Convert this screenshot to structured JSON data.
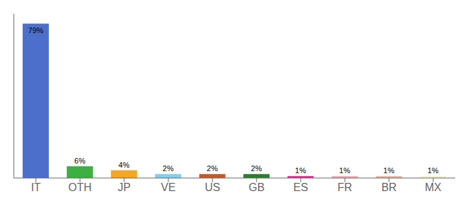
{
  "chart_data": {
    "type": "bar",
    "categories": [
      "IT",
      "OTH",
      "JP",
      "VE",
      "US",
      "GB",
      "ES",
      "FR",
      "BR",
      "MX"
    ],
    "values": [
      79,
      6,
      4,
      2,
      2,
      2,
      1,
      1,
      1,
      1
    ],
    "value_labels": [
      "79%",
      "6%",
      "4%",
      "2%",
      "2%",
      "2%",
      "1%",
      "1%",
      "1%",
      "1%"
    ],
    "colors": [
      "#4d6fcc",
      "#3cb043",
      "#f5a623",
      "#87ceeb",
      "#c05a2a",
      "#2e7d32",
      "#e91e8c",
      "#f4a7b9",
      "#e8b4a0",
      "#f5f0d0"
    ],
    "ylim": [
      0,
      84
    ],
    "grid": false,
    "data_labels": true,
    "tick_labels": "x"
  }
}
